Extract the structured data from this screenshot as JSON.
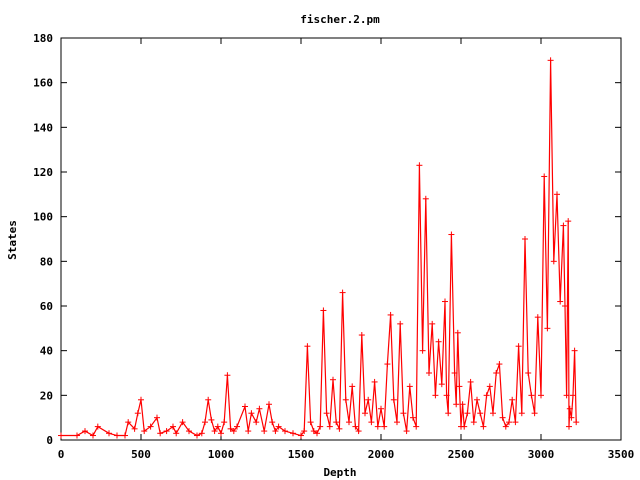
{
  "chart_data": {
    "type": "line",
    "title": "fischer.2.pm",
    "xlabel": "Depth",
    "ylabel": "States",
    "xlim": [
      0,
      3500
    ],
    "ylim": [
      0,
      180
    ],
    "xticks": [
      0,
      500,
      1000,
      1500,
      2000,
      2500,
      3000,
      3500
    ],
    "yticks": [
      0,
      20,
      40,
      60,
      80,
      100,
      120,
      140,
      160,
      180
    ],
    "grid": false,
    "legend": "none",
    "color": "#ff0000",
    "marker": "+",
    "series": [
      {
        "x": [
          0,
          100,
          150,
          200,
          230,
          300,
          350,
          400,
          420,
          460,
          480,
          500,
          520,
          560,
          600,
          620,
          660,
          700,
          720,
          760,
          800,
          850,
          880,
          900,
          920,
          940,
          960,
          980,
          1000,
          1020,
          1040,
          1060,
          1080,
          1100,
          1150,
          1170,
          1190,
          1220,
          1240,
          1270,
          1300,
          1320,
          1340,
          1360,
          1400,
          1450,
          1500,
          1520,
          1540,
          1560,
          1580,
          1600,
          1620,
          1640,
          1660,
          1680,
          1700,
          1720,
          1740,
          1760,
          1780,
          1800,
          1820,
          1840,
          1860,
          1880,
          1900,
          1920,
          1940,
          1960,
          1980,
          2000,
          2020,
          2040,
          2060,
          2080,
          2100,
          2120,
          2140,
          2160,
          2180,
          2200,
          2220,
          2240,
          2260,
          2280,
          2300,
          2320,
          2340,
          2360,
          2380,
          2400,
          2410,
          2420,
          2440,
          2460,
          2470,
          2480,
          2490,
          2500,
          2510,
          2520,
          2540,
          2560,
          2580,
          2600,
          2620,
          2640,
          2660,
          2680,
          2700,
          2720,
          2740,
          2760,
          2780,
          2800,
          2820,
          2840,
          2860,
          2880,
          2900,
          2920,
          2940,
          2960,
          2980,
          3000,
          3020,
          3040,
          3060,
          3080,
          3100,
          3120,
          3140,
          3150,
          3160,
          3170,
          3175,
          3180,
          3190,
          3200,
          3210,
          3220
        ],
        "y": [
          2,
          2,
          4,
          2,
          6,
          3,
          2,
          2,
          8,
          5,
          12,
          18,
          4,
          6,
          10,
          3,
          4,
          6,
          3,
          8,
          4,
          2,
          3,
          8,
          18,
          9,
          4,
          6,
          3,
          8,
          29,
          5,
          4,
          6,
          15,
          4,
          12,
          8,
          14,
          4,
          16,
          8,
          4,
          6,
          4,
          3,
          2,
          4,
          42,
          8,
          4,
          3,
          6,
          58,
          12,
          6,
          27,
          8,
          5,
          66,
          18,
          8,
          24,
          6,
          4,
          47,
          12,
          18,
          8,
          26,
          6,
          14,
          6,
          34,
          56,
          18,
          8,
          52,
          12,
          4,
          24,
          10,
          6,
          123,
          40,
          108,
          30,
          52,
          20,
          44,
          25,
          62,
          20,
          12,
          92,
          30,
          16,
          48,
          24,
          6,
          16,
          6,
          12,
          26,
          8,
          18,
          12,
          6,
          20,
          24,
          12,
          30,
          34,
          10,
          6,
          8,
          18,
          8,
          42,
          12,
          90,
          30,
          20,
          12,
          55,
          20,
          118,
          50,
          170,
          80,
          110,
          62,
          96,
          60,
          20,
          98,
          6,
          14,
          10,
          20,
          40,
          8
        ]
      }
    ]
  }
}
